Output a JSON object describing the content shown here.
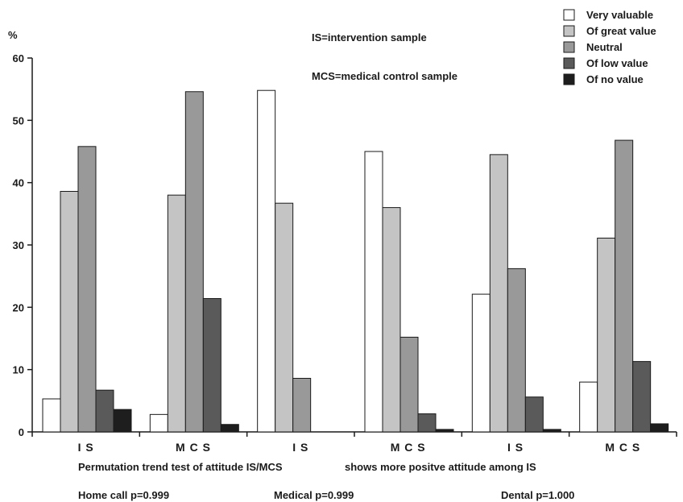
{
  "chart_data": {
    "type": "bar",
    "y_unit": "%",
    "ylim": [
      0,
      60
    ],
    "yticks": [
      0,
      10,
      20,
      30,
      40,
      50,
      60
    ],
    "categories": [
      "I S",
      "M C S",
      "I S",
      "M C S",
      "I S",
      "M C S"
    ],
    "series": [
      {
        "name": "Very valuable",
        "color": "#ffffff",
        "values": [
          5.3,
          2.8,
          54.8,
          45.0,
          22.1,
          8.0
        ]
      },
      {
        "name": "Of great value",
        "color": "#c4c4c4",
        "values": [
          38.6,
          38.0,
          36.7,
          36.0,
          44.5,
          31.1
        ]
      },
      {
        "name": "Neutral",
        "color": "#999999",
        "values": [
          45.8,
          54.6,
          8.6,
          15.2,
          26.2,
          46.8
        ]
      },
      {
        "name": "Of low value",
        "color": "#5a5a5a",
        "values": [
          6.7,
          21.4,
          0,
          2.9,
          5.6,
          11.3
        ]
      },
      {
        "name": "Of no value",
        "color": "#1e1e1e",
        "values": [
          3.6,
          1.2,
          0,
          0.4,
          0.4,
          1.3
        ]
      }
    ],
    "legend_position": "top-right",
    "grid": false,
    "annotations": {
      "is_definition": "IS=intervention sample",
      "mcs_definition": "MCS=medical control sample"
    }
  },
  "footer": {
    "test_line_left": "Permutation trend test of attitude IS/MCS",
    "test_line_right": "shows more positve attitude among IS",
    "home_call": "Home call p=0.999",
    "medical": "Medical p=0.999",
    "dental": "Dental p=1.000"
  }
}
